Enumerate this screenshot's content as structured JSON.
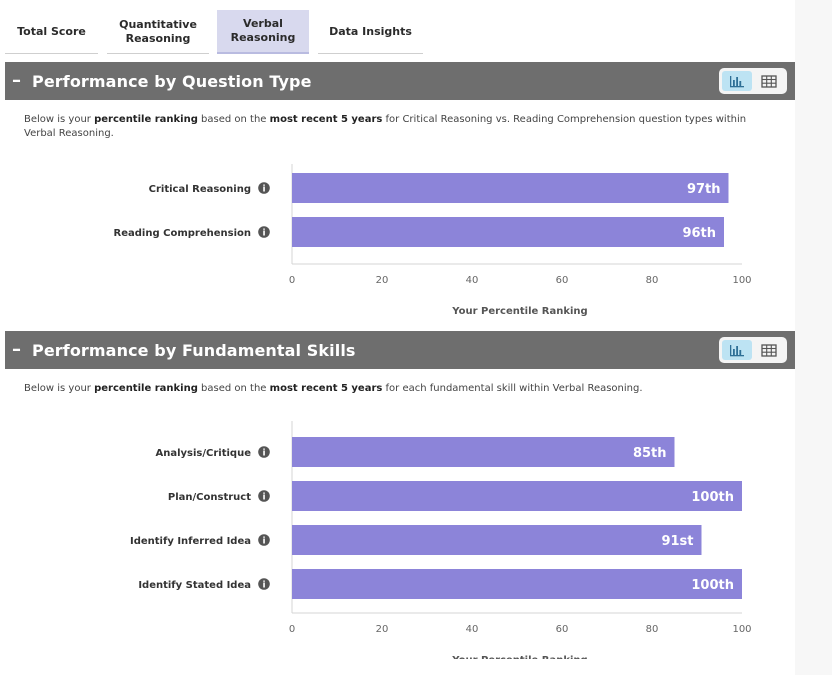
{
  "tabs": [
    {
      "label": "Total Score",
      "active": false
    },
    {
      "label": "Quantitative\nReasoning",
      "active": false
    },
    {
      "label": "Verbal\nReasoning",
      "active": true
    },
    {
      "label": "Data Insights",
      "active": false
    }
  ],
  "icons": {
    "collapse": "minus-icon",
    "bar_view": "bar-chart-icon",
    "table_view": "table-icon",
    "info": "info-icon"
  },
  "colors": {
    "bar": "#8c84d9",
    "header": "#6e6e6e",
    "active_tab": "#d8d9ee",
    "toggle_active": "#bde3f3"
  },
  "sections": [
    {
      "title": "Performance by Question Type",
      "collapse_symbol": "–",
      "description": {
        "p1": "Below is your ",
        "b1": "percentile ranking",
        "p2": " based on the ",
        "b2": "most recent 5 years",
        "p3": " for Critical Reasoning vs. Reading Comprehension question types within Verbal Reasoning."
      }
    },
    {
      "title": "Performance by Fundamental Skills",
      "collapse_symbol": "–",
      "description": {
        "p1": "Below is your ",
        "b1": "percentile ranking",
        "p2": " based on the ",
        "b2": "most recent 5 years",
        "p3": " for each fundamental skill within Verbal Reasoning."
      }
    }
  ],
  "chart_data": [
    {
      "type": "bar",
      "orientation": "horizontal",
      "categories": [
        "Critical Reasoning",
        "Reading Comprehension"
      ],
      "values": [
        97,
        96
      ],
      "data_labels": [
        "97th",
        "96th"
      ],
      "xlabel": "Your Percentile Ranking",
      "xlim": [
        0,
        100
      ],
      "xticks": [
        0,
        20,
        40,
        60,
        80,
        100
      ],
      "grid": false,
      "legend": "none"
    },
    {
      "type": "bar",
      "orientation": "horizontal",
      "categories": [
        "Analysis/Critique",
        "Plan/Construct",
        "Identify Inferred Idea",
        "Identify Stated Idea"
      ],
      "values": [
        85,
        100,
        91,
        100
      ],
      "data_labels": [
        "85th",
        "100th",
        "91st",
        "100th"
      ],
      "xlabel": "Your Percentile Ranking",
      "xlim": [
        0,
        100
      ],
      "xticks": [
        0,
        20,
        40,
        60,
        80,
        100
      ],
      "grid": false,
      "legend": "none"
    }
  ]
}
